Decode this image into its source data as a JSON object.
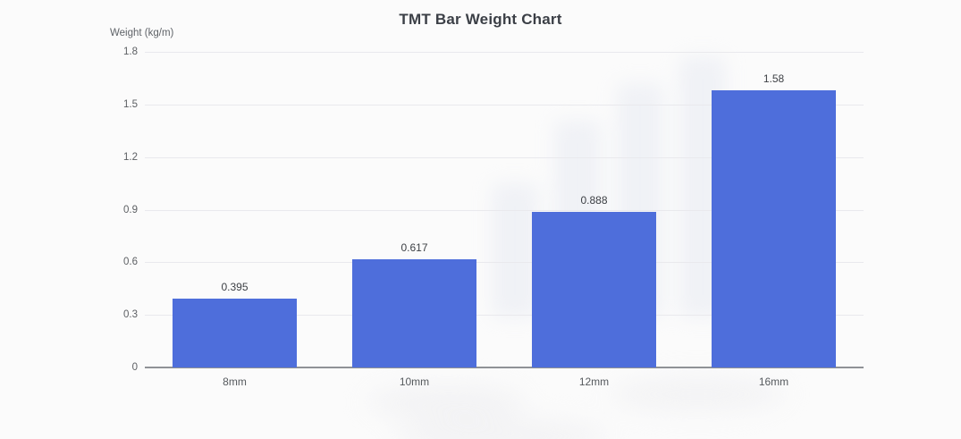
{
  "page": {
    "background_color": "#fbfbfb"
  },
  "chart_data": {
    "type": "bar",
    "title": "TMT Bar Weight Chart",
    "ylabel": "Weight (kg/m)",
    "xlabel": "",
    "categories": [
      "8mm",
      "10mm",
      "12mm",
      "16mm"
    ],
    "values": [
      0.395,
      0.617,
      0.888,
      1.58
    ],
    "data_labels": [
      "0.395",
      "0.617",
      "0.888",
      "1.58"
    ],
    "y_ticks": [
      "0",
      "0.3",
      "0.6",
      "0.9",
      "1.2",
      "1.5",
      "1.8"
    ],
    "y_tick_values": [
      0,
      0.3,
      0.6,
      0.9,
      1.2,
      1.5,
      1.8
    ],
    "ylim": [
      0,
      1.8
    ],
    "grid": "horizontal",
    "legend": "none",
    "bar_color": "#4e6edb",
    "axis_line_color": "#8f9296",
    "grid_color": "#e9e9ed"
  }
}
